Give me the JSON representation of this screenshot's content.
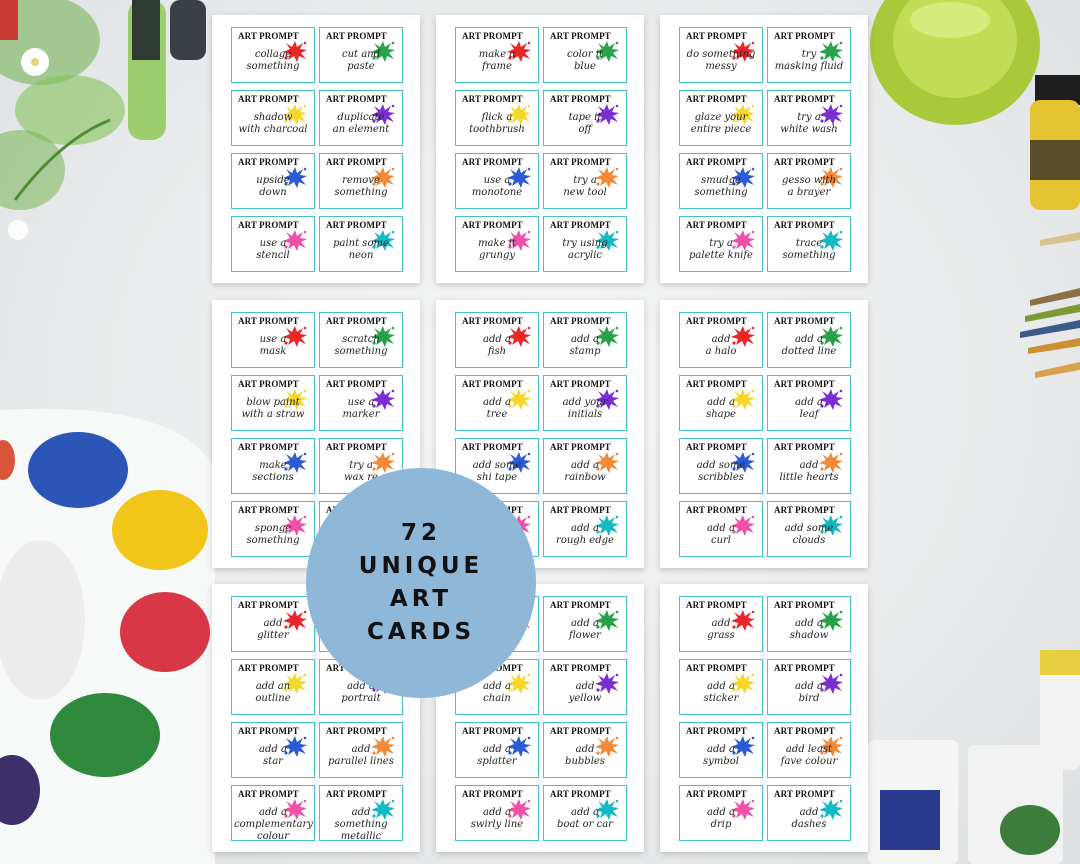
{
  "card_title": "ART PROMPT",
  "badge_lines": [
    "72",
    "UNIQUE",
    "ART",
    "CARDS"
  ],
  "splat_colors": [
    "#e8262a",
    "#27a14a",
    "#f5d72b",
    "#7b2ed0",
    "#2d5bd8",
    "#f28a3a",
    "#ee4fa8",
    "#16b8c2"
  ],
  "sheets": [
    {
      "cards": [
        "collage\nsomething",
        "cut and\npaste",
        "shadow\nwith charcoal",
        "duplicate\nan element",
        "upside\ndown",
        "remove\nsomething",
        "use a\nstencil",
        "paint some\nneon"
      ]
    },
    {
      "cards": [
        "make a\nframe",
        "color it\nblue",
        "flick a\ntoothbrush",
        "tape it\noff",
        "use a\nmonotone",
        "try a\nnew tool",
        "make it\ngrungy",
        "try using\nacrylic"
      ]
    },
    {
      "cards": [
        "do something\nmessy",
        "try\nmasking fluid",
        "glaze your\nentire piece",
        "try a\nwhite wash",
        "smudge\nsomething",
        "gesso with\na brayer",
        "try a\npalette knife",
        "trace\nsomething"
      ]
    },
    {
      "cards": [
        "use a\nmask",
        "scratch\nsomething",
        "blow paint\nwith a straw",
        "use a\nmarker",
        "make\nsections",
        "try a\nwax re",
        "sponge\nsomething",
        ""
      ]
    },
    {
      "cards": [
        "add a\nfish",
        "add a\nstamp",
        "add a\ntree",
        "add your\ninitials",
        "add some\nshi tape",
        "add a\nrainbow",
        "",
        "add a\nrough edge"
      ]
    },
    {
      "cards": [
        "add\na halo",
        "add a\ndotted line",
        "add a\nshape",
        "add a\nleaf",
        "add some\nscribbles",
        "add\nlittle hearts",
        "add a\ncurl",
        "add some\nclouds"
      ]
    },
    {
      "cards": [
        "add\nglitter",
        "",
        "add an\noutline",
        "add a\nportrait",
        "add a\nstar",
        "add\nparallel lines",
        "add a\ncomplementary\ncolour",
        "add\nsomething\nmetallic"
      ]
    },
    {
      "cards": [
        "",
        "add a\nflower",
        "add a\nchain",
        "add\nyellow",
        "add a\nsplatter",
        "add\nbubbles",
        "add a\nswirly line",
        "add a\nboat or car"
      ]
    },
    {
      "cards": [
        "add\ngrass",
        "add a\nshadow",
        "add a\nsticker",
        "add a\nbird",
        "add a\nsymbol",
        "add least\nfave colour",
        "add a\ndrip",
        "add\ndashes"
      ]
    }
  ]
}
